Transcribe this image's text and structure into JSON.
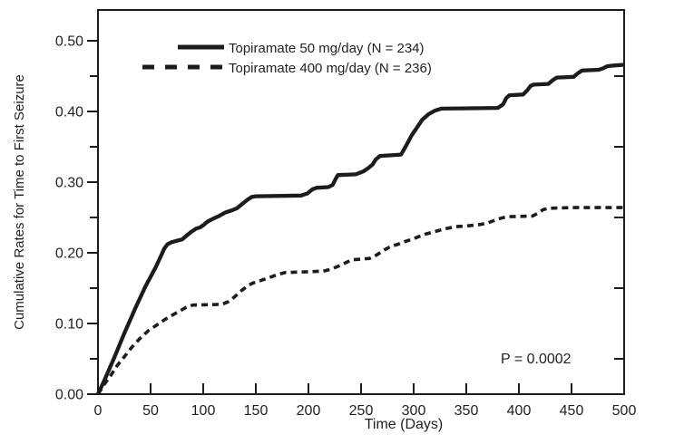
{
  "figure": {
    "background": "#ffffff",
    "ink_color": "#231f20",
    "line_color": "#1c1c1c"
  },
  "chart_data": {
    "type": "line",
    "title": "",
    "xlabel": "Time (Days)",
    "ylabel": "Cumulative Rates for Time to First Seizure",
    "xlim": [
      0,
      500
    ],
    "ylim": [
      0,
      0.545
    ],
    "grid": false,
    "legend_position": "top-left-inside",
    "x_ticks": [
      0,
      50,
      100,
      150,
      200,
      250,
      300,
      350,
      400,
      450,
      500
    ],
    "x_tick_labels": [
      "0",
      "50",
      "100",
      "150",
      "200",
      "250",
      "300",
      "350",
      "400",
      "450",
      "500"
    ],
    "y_ticks_major": [
      0.0,
      0.1,
      0.2,
      0.3,
      0.4,
      0.5
    ],
    "y_tick_labels": [
      "0.00",
      "0.10",
      "0.20",
      "0.30",
      "0.40",
      "0.50"
    ],
    "y_ticks_minor": [
      0.05,
      0.15,
      0.25,
      0.35,
      0.45
    ],
    "y_ticks_right": [
      0.05,
      0.15,
      0.25,
      0.35,
      0.45
    ],
    "annotations": [
      {
        "text": "P = 0.0002",
        "x": 383,
        "y": 0.045
      }
    ],
    "series": [
      {
        "name": "Topiramate 50 mg/day (N = 234)",
        "line_style": "solid",
        "color": "#1c1c1c",
        "points": [
          [
            0,
            0.0
          ],
          [
            5,
            0.016
          ],
          [
            10,
            0.033
          ],
          [
            15,
            0.05
          ],
          [
            20,
            0.068
          ],
          [
            25,
            0.086
          ],
          [
            30,
            0.103
          ],
          [
            35,
            0.12
          ],
          [
            40,
            0.136
          ],
          [
            45,
            0.152
          ],
          [
            50,
            0.166
          ],
          [
            55,
            0.18
          ],
          [
            60,
            0.196
          ],
          [
            63,
            0.206
          ],
          [
            66,
            0.212
          ],
          [
            70,
            0.215
          ],
          [
            75,
            0.217
          ],
          [
            80,
            0.219
          ],
          [
            84,
            0.224
          ],
          [
            88,
            0.229
          ],
          [
            93,
            0.234
          ],
          [
            97,
            0.236
          ],
          [
            100,
            0.239
          ],
          [
            104,
            0.244
          ],
          [
            109,
            0.248
          ],
          [
            115,
            0.252
          ],
          [
            121,
            0.257
          ],
          [
            127,
            0.26
          ],
          [
            132,
            0.263
          ],
          [
            137,
            0.269
          ],
          [
            142,
            0.275
          ],
          [
            146,
            0.279
          ],
          [
            150,
            0.28
          ],
          [
            193,
            0.281
          ],
          [
            199,
            0.284
          ],
          [
            204,
            0.29
          ],
          [
            208,
            0.292
          ],
          [
            219,
            0.293
          ],
          [
            223,
            0.296
          ],
          [
            226,
            0.305
          ],
          [
            228,
            0.31
          ],
          [
            245,
            0.311
          ],
          [
            252,
            0.315
          ],
          [
            257,
            0.32
          ],
          [
            261,
            0.325
          ],
          [
            264,
            0.332
          ],
          [
            268,
            0.337
          ],
          [
            288,
            0.339
          ],
          [
            293,
            0.352
          ],
          [
            298,
            0.366
          ],
          [
            303,
            0.377
          ],
          [
            308,
            0.388
          ],
          [
            314,
            0.396
          ],
          [
            320,
            0.401
          ],
          [
            326,
            0.404
          ],
          [
            380,
            0.405
          ],
          [
            385,
            0.41
          ],
          [
            388,
            0.419
          ],
          [
            391,
            0.423
          ],
          [
            404,
            0.424
          ],
          [
            408,
            0.43
          ],
          [
            411,
            0.436
          ],
          [
            414,
            0.438
          ],
          [
            428,
            0.439
          ],
          [
            432,
            0.444
          ],
          [
            436,
            0.448
          ],
          [
            452,
            0.449
          ],
          [
            456,
            0.454
          ],
          [
            460,
            0.458
          ],
          [
            476,
            0.459
          ],
          [
            480,
            0.461
          ],
          [
            484,
            0.464
          ],
          [
            490,
            0.465
          ],
          [
            500,
            0.466
          ]
        ]
      },
      {
        "name": "Topiramate 400 mg/day (N = 236)",
        "line_style": "dashed",
        "color": "#1c1c1c",
        "points": [
          [
            0,
            0.0
          ],
          [
            6,
            0.014
          ],
          [
            12,
            0.026
          ],
          [
            18,
            0.04
          ],
          [
            25,
            0.053
          ],
          [
            32,
            0.066
          ],
          [
            40,
            0.079
          ],
          [
            48,
            0.09
          ],
          [
            56,
            0.098
          ],
          [
            64,
            0.106
          ],
          [
            72,
            0.113
          ],
          [
            78,
            0.118
          ],
          [
            84,
            0.123
          ],
          [
            90,
            0.126
          ],
          [
            118,
            0.127
          ],
          [
            124,
            0.131
          ],
          [
            130,
            0.138
          ],
          [
            136,
            0.146
          ],
          [
            142,
            0.153
          ],
          [
            147,
            0.157
          ],
          [
            155,
            0.161
          ],
          [
            163,
            0.165
          ],
          [
            170,
            0.169
          ],
          [
            178,
            0.172
          ],
          [
            214,
            0.174
          ],
          [
            222,
            0.177
          ],
          [
            230,
            0.182
          ],
          [
            237,
            0.187
          ],
          [
            241,
            0.19
          ],
          [
            258,
            0.192
          ],
          [
            265,
            0.197
          ],
          [
            272,
            0.204
          ],
          [
            278,
            0.209
          ],
          [
            285,
            0.212
          ],
          [
            292,
            0.216
          ],
          [
            300,
            0.22
          ],
          [
            310,
            0.226
          ],
          [
            320,
            0.23
          ],
          [
            330,
            0.234
          ],
          [
            340,
            0.237
          ],
          [
            350,
            0.238
          ],
          [
            363,
            0.24
          ],
          [
            370,
            0.242
          ],
          [
            377,
            0.246
          ],
          [
            383,
            0.249
          ],
          [
            388,
            0.251
          ],
          [
            413,
            0.252
          ],
          [
            418,
            0.256
          ],
          [
            423,
            0.261
          ],
          [
            428,
            0.263
          ],
          [
            450,
            0.264
          ],
          [
            500,
            0.264
          ]
        ]
      }
    ]
  }
}
